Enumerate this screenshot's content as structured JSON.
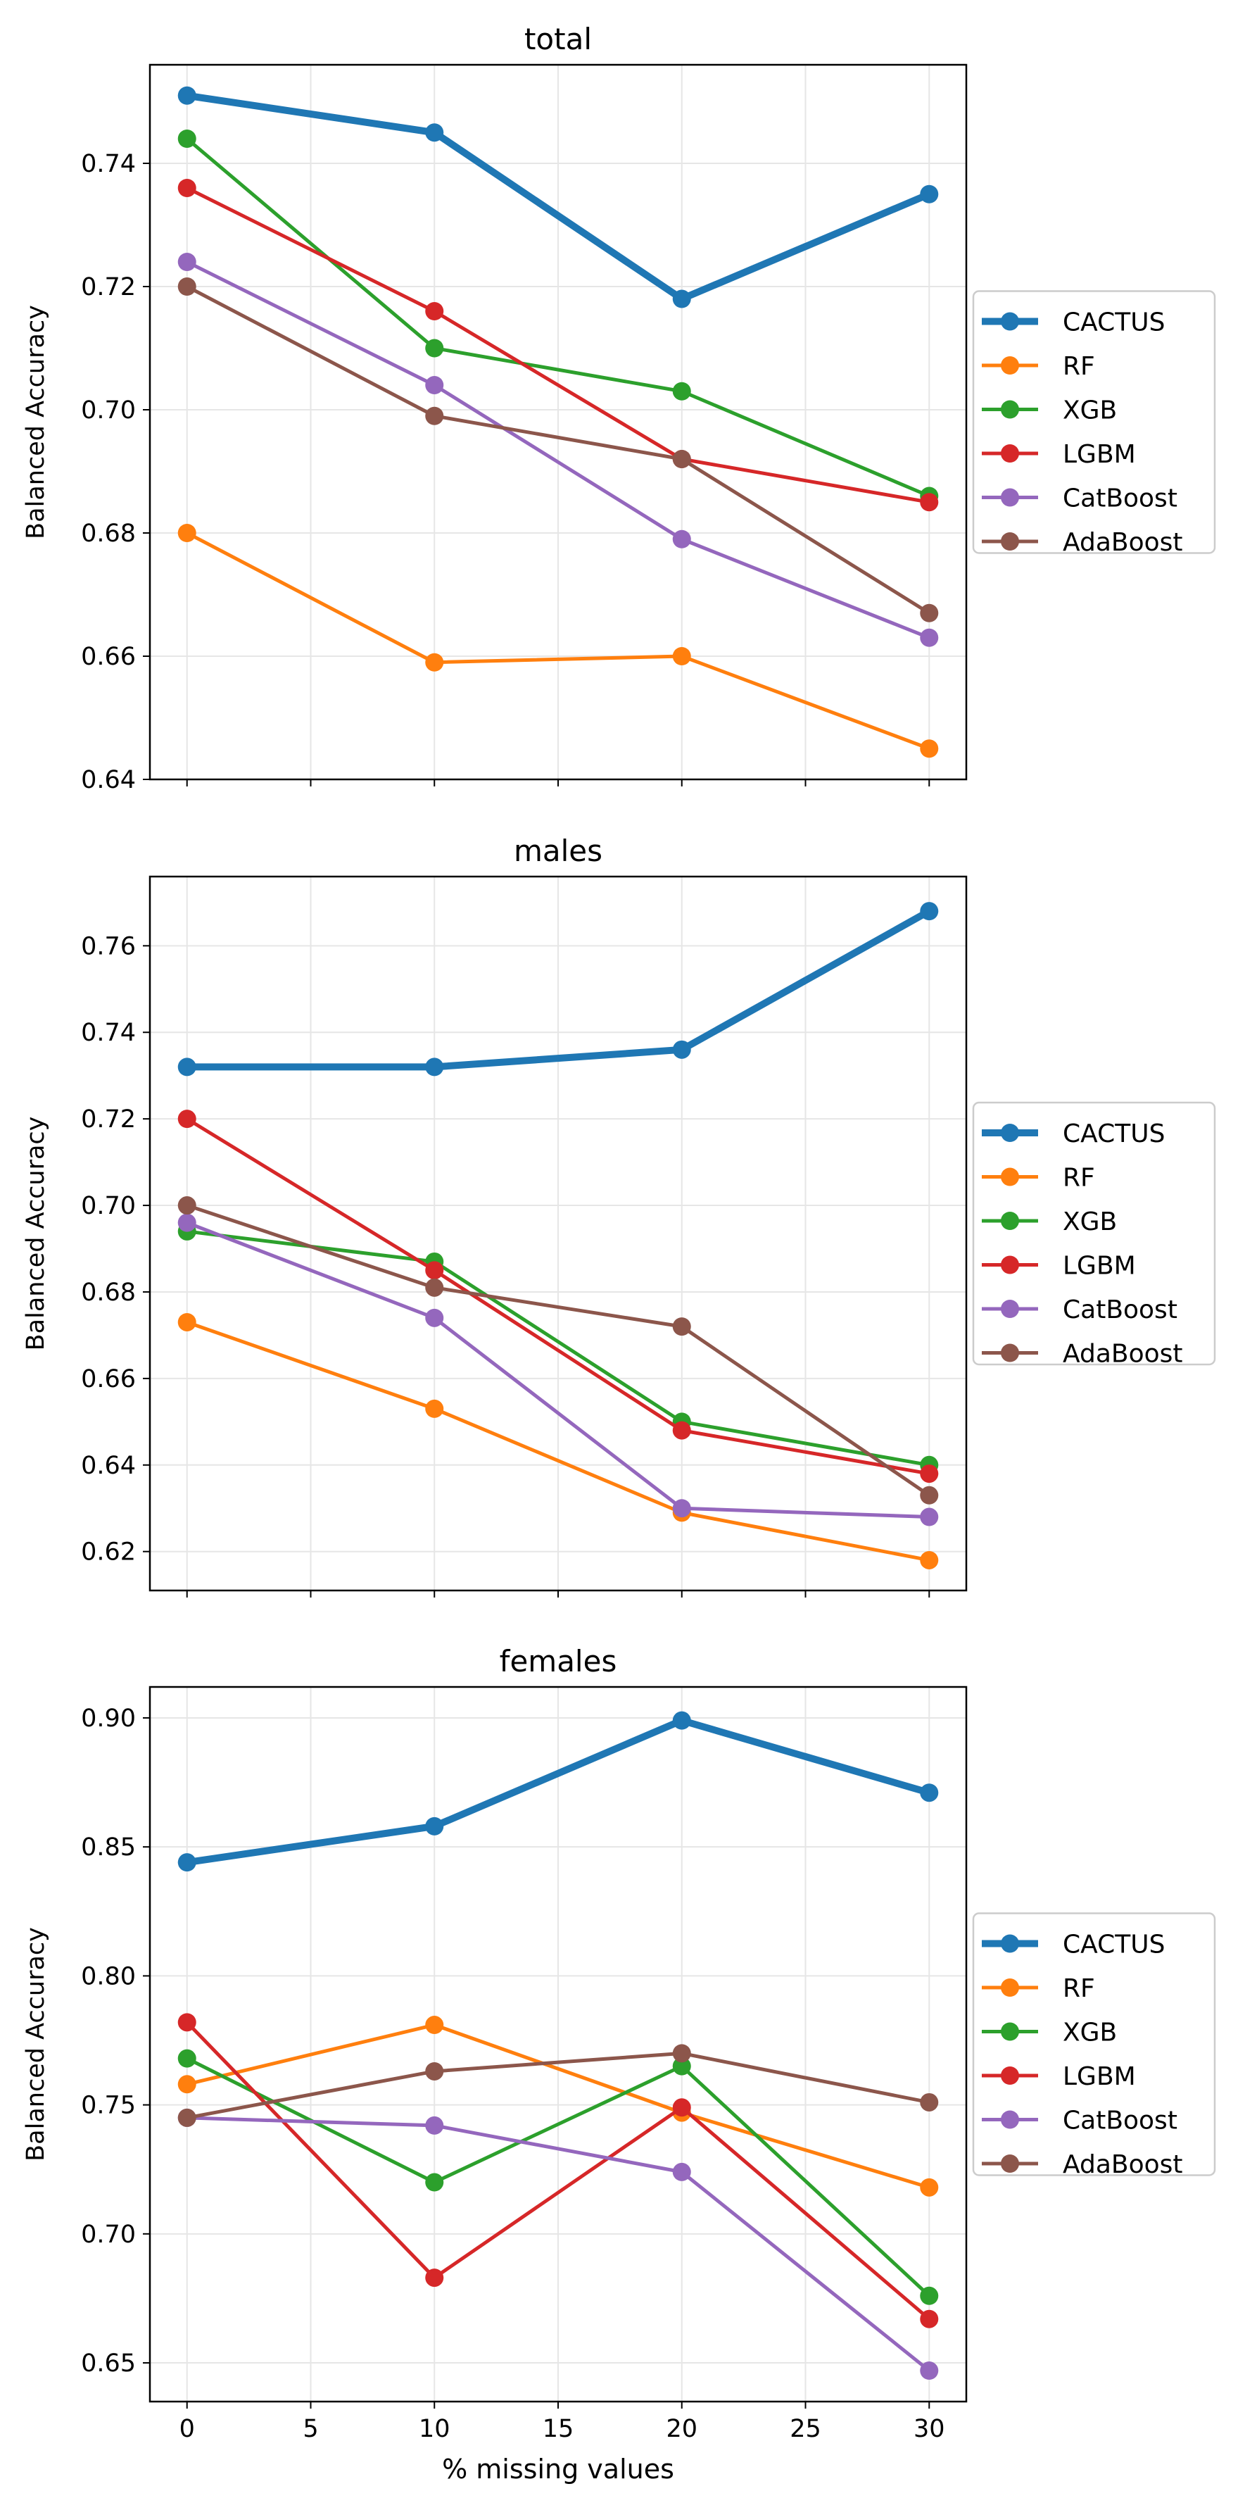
{
  "figure": {
    "xlabel": "% missing values"
  },
  "chart_data": [
    {
      "type": "line",
      "title": "total",
      "xlabel": "",
      "ylabel": "Balanced Accuracy",
      "x": [
        0,
        10,
        20,
        30
      ],
      "xlim": [
        -1.5,
        31.5
      ],
      "ylim": [
        0.64,
        0.756
      ],
      "yticks": [
        "0.64",
        "0.66",
        "0.68",
        "0.70",
        "0.72",
        "0.74"
      ],
      "xticks": [
        0,
        5,
        10,
        15,
        20,
        25,
        30
      ],
      "show_xticklabels": false,
      "grid": true,
      "legend_position": "right",
      "series": [
        {
          "name": "CACTUS",
          "color": "#1f77b4",
          "values": [
            0.751,
            0.745,
            0.718,
            0.735
          ]
        },
        {
          "name": "RF",
          "color": "#ff7f0e",
          "values": [
            0.68,
            0.659,
            0.66,
            0.645
          ]
        },
        {
          "name": "XGB",
          "color": "#2ca02c",
          "values": [
            0.744,
            0.71,
            0.703,
            0.686
          ]
        },
        {
          "name": "LGBM",
          "color": "#d62728",
          "values": [
            0.736,
            0.716,
            0.692,
            0.685
          ]
        },
        {
          "name": "CatBoost",
          "color": "#9467bd",
          "values": [
            0.724,
            0.704,
            0.679,
            0.663
          ]
        },
        {
          "name": "AdaBoost",
          "color": "#8c564b",
          "values": [
            0.72,
            0.699,
            0.692,
            0.667
          ]
        }
      ]
    },
    {
      "type": "line",
      "title": "males",
      "xlabel": "",
      "ylabel": "Balanced Accuracy",
      "x": [
        0,
        10,
        20,
        30
      ],
      "xlim": [
        -1.5,
        31.5
      ],
      "ylim": [
        0.611,
        0.776
      ],
      "yticks": [
        "0.62",
        "0.64",
        "0.66",
        "0.68",
        "0.70",
        "0.72",
        "0.74",
        "0.76"
      ],
      "xticks": [
        0,
        5,
        10,
        15,
        20,
        25,
        30
      ],
      "show_xticklabels": false,
      "grid": true,
      "legend_position": "right",
      "series": [
        {
          "name": "CACTUS",
          "color": "#1f77b4",
          "values": [
            0.732,
            0.732,
            0.736,
            0.768
          ]
        },
        {
          "name": "RF",
          "color": "#ff7f0e",
          "values": [
            0.673,
            0.653,
            0.629,
            0.618
          ]
        },
        {
          "name": "XGB",
          "color": "#2ca02c",
          "values": [
            0.694,
            0.687,
            0.65,
            0.64
          ]
        },
        {
          "name": "LGBM",
          "color": "#d62728",
          "values": [
            0.72,
            0.685,
            0.648,
            0.638
          ]
        },
        {
          "name": "CatBoost",
          "color": "#9467bd",
          "values": [
            0.696,
            0.674,
            0.63,
            0.628
          ]
        },
        {
          "name": "AdaBoost",
          "color": "#8c564b",
          "values": [
            0.7,
            0.681,
            0.672,
            0.633
          ]
        }
      ]
    },
    {
      "type": "line",
      "title": "females",
      "xlabel": "% missing values",
      "ylabel": "Balanced Accuracy",
      "x": [
        0,
        10,
        20,
        30
      ],
      "xlim": [
        -1.5,
        31.5
      ],
      "ylim": [
        0.635,
        0.912
      ],
      "yticks": [
        "0.65",
        "0.70",
        "0.75",
        "0.80",
        "0.85",
        "0.90"
      ],
      "xticks": [
        0,
        5,
        10,
        15,
        20,
        25,
        30
      ],
      "xticklabels": [
        "0",
        "5",
        "10",
        "15",
        "20",
        "25",
        "30"
      ],
      "show_xticklabels": true,
      "grid": true,
      "legend_position": "right",
      "series": [
        {
          "name": "CACTUS",
          "color": "#1f77b4",
          "values": [
            0.844,
            0.858,
            0.899,
            0.871
          ]
        },
        {
          "name": "RF",
          "color": "#ff7f0e",
          "values": [
            0.758,
            0.781,
            0.747,
            0.718
          ]
        },
        {
          "name": "XGB",
          "color": "#2ca02c",
          "values": [
            0.768,
            0.72,
            0.765,
            0.676
          ]
        },
        {
          "name": "LGBM",
          "color": "#d62728",
          "values": [
            0.782,
            0.683,
            0.749,
            0.667
          ]
        },
        {
          "name": "CatBoost",
          "color": "#9467bd",
          "values": [
            0.745,
            0.742,
            0.724,
            0.647
          ]
        },
        {
          "name": "AdaBoost",
          "color": "#8c564b",
          "values": [
            0.745,
            0.763,
            0.77,
            0.751
          ]
        }
      ]
    }
  ]
}
